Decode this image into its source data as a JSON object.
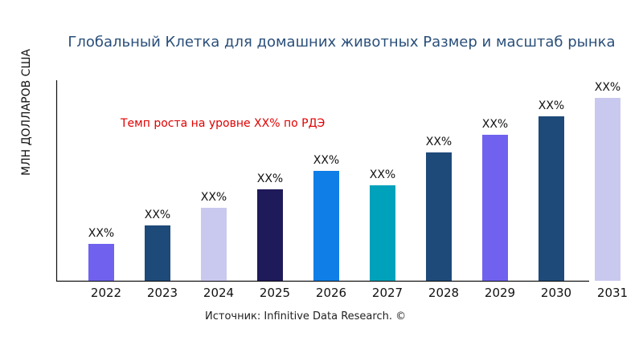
{
  "chart_data": {
    "type": "bar",
    "title": "Глобальный Клетка для домашних животных Размер и масштаб рынка",
    "ylabel": "МЛН ДОЛЛАРОВ США",
    "xlabel": "",
    "categories": [
      "2022",
      "2023",
      "2024",
      "2025",
      "2026",
      "2027",
      "2028",
      "2029",
      "2030",
      "2031"
    ],
    "values": [
      46,
      69,
      91,
      114,
      137,
      119,
      160,
      182,
      205,
      228
    ],
    "data_labels": [
      "XX%",
      "XX%",
      "XX%",
      "XX%",
      "XX%",
      "XX%",
      "XX%",
      "XX%",
      "XX%",
      "XX%"
    ],
    "colors": [
      "#7062ee",
      "#1e4a7a",
      "#c9c9ef",
      "#1f1a5a",
      "#0f7ee6",
      "#00a1bb",
      "#1e4a7a",
      "#7062ee",
      "#1e4a7a",
      "#c9c9ef"
    ],
    "ylim": [
      0,
      250
    ],
    "grid": false,
    "annotation": "Темп роста на уровне XX% по РДЭ",
    "source": "Источник: Infinitive Data Research. ©"
  }
}
